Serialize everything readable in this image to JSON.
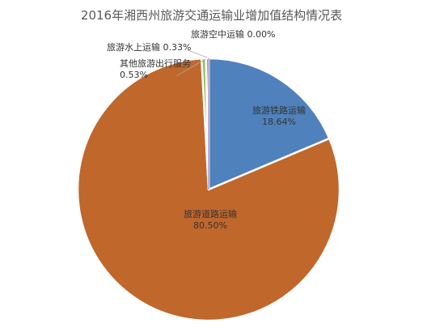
{
  "chart_data": {
    "type": "pie",
    "title": "2016年湘西州旅游交通运输业增加值结构情况表",
    "slices": [
      {
        "label": "旅游铁路运输",
        "value": 18.64,
        "display": "18.64%",
        "color": "#4f81bd"
      },
      {
        "label": "旅游道路运输",
        "value": 80.5,
        "display": "80.50%",
        "color": "#c0672c"
      },
      {
        "label": "其他旅游出行服务",
        "value": 0.53,
        "display": "0.53%",
        "color": "#9bbb59"
      },
      {
        "label": "旅游水上运输",
        "value": 0.33,
        "display": "0.33%",
        "color": "#2f97b3"
      },
      {
        "label": "旅游空中运输",
        "value": 0.0,
        "display": "0.00%",
        "color": "#8064a2"
      }
    ]
  }
}
